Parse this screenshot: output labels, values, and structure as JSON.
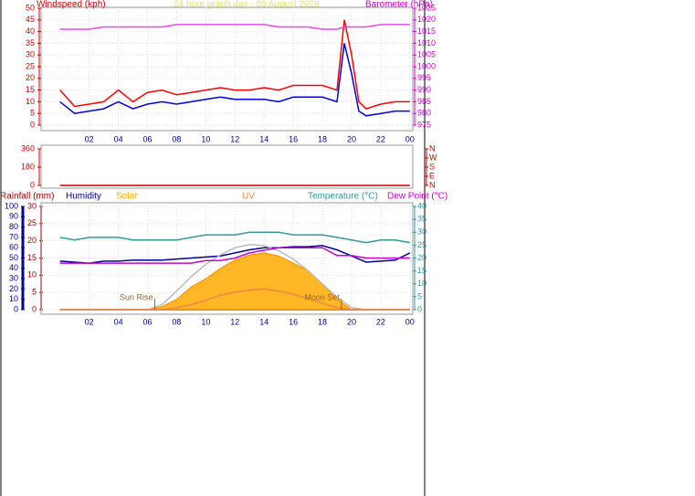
{
  "chart_data": [
    {
      "type": "line",
      "title": "24 hour graph day - 09 August 2026",
      "y_label": "Windspeed (kph)",
      "y2_label": "Barometer (hPa)",
      "axis_colors": {
        "y": "#cc0000",
        "y2": "#cc00cc"
      },
      "grid": true,
      "xlim": [
        -1.3,
        24.2
      ],
      "xticks": [
        {
          "value": 2,
          "label": "02"
        },
        {
          "value": 4,
          "label": "04"
        },
        {
          "value": 6,
          "label": "06"
        },
        {
          "value": 8,
          "label": "08"
        },
        10,
        12,
        14,
        16,
        18,
        20,
        22,
        {
          "value": 24,
          "label": "00"
        }
      ],
      "ylim": [
        0,
        50
      ],
      "yticks": [
        0,
        5,
        10,
        15,
        20,
        25,
        30,
        35,
        40,
        45,
        50
      ],
      "y2lim": [
        975,
        1025
      ],
      "y2ticks": [
        975,
        980,
        985,
        990,
        995,
        1000,
        1005,
        1010,
        1015,
        1020,
        1025
      ],
      "x": [
        0,
        1,
        2,
        3,
        4,
        5,
        6,
        7,
        8,
        9,
        10,
        11,
        12,
        13,
        14,
        15,
        16,
        17,
        18,
        19,
        19.5,
        20,
        20.5,
        21,
        22,
        23,
        24
      ],
      "series": [
        {
          "color": "#ff0000",
          "values": [
            15,
            8,
            9,
            10,
            15,
            10,
            14,
            15,
            13,
            14,
            15,
            16,
            15,
            15,
            16,
            15,
            17,
            17,
            17,
            15,
            45,
            30,
            10,
            7,
            9,
            10,
            10
          ]
        },
        {
          "color": "#0000dd",
          "values": [
            10,
            5,
            6,
            7,
            10,
            7,
            9,
            10,
            9,
            10,
            11,
            12,
            11,
            11,
            11,
            10,
            12,
            12,
            12,
            10,
            35,
            22,
            6,
            4,
            5,
            6,
            6
          ]
        },
        {
          "color": "#ee44ee",
          "axis": "y2",
          "values": [
            1016,
            1016,
            1016,
            1017,
            1017,
            1017,
            1017,
            1017,
            1018,
            1018,
            1018,
            1018,
            1018,
            1018,
            1018,
            1017,
            1017,
            1017,
            1016,
            1016,
            1017,
            1017,
            1017,
            1017,
            1018,
            1018,
            1018
          ]
        }
      ]
    },
    {
      "type": "line",
      "axis_colors": {
        "y": "#cc0000",
        "y2": "#cc0000"
      },
      "grid": false,
      "xlim": [
        -1.3,
        24.2
      ],
      "ylim": [
        0,
        360
      ],
      "yticks": [
        0,
        180,
        360
      ],
      "y2lim": [
        0,
        360
      ],
      "y2ticks": [
        {
          "value": 360,
          "label": "N"
        },
        {
          "value": 270,
          "label": "W"
        },
        {
          "value": 180,
          "label": "S"
        },
        {
          "value": 90,
          "label": "E"
        },
        {
          "value": 0,
          "label": "N"
        }
      ],
      "x": [
        0,
        24
      ],
      "series": [
        {
          "color": "#cc0000",
          "values": [
            0,
            0
          ]
        }
      ]
    },
    {
      "type": "line",
      "axis_colors": {
        "y": "#990000",
        "y2": "#339999",
        "y3": "#000099"
      },
      "grid": true,
      "xlim": [
        -1.3,
        24.2
      ],
      "xticks": [
        {
          "value": 2,
          "label": "02"
        },
        {
          "value": 4,
          "label": "04"
        },
        {
          "value": 6,
          "label": "06"
        },
        {
          "value": 8,
          "label": "08"
        },
        10,
        12,
        14,
        16,
        18,
        20,
        22,
        {
          "value": 24,
          "label": "00"
        }
      ],
      "ylim": [
        0,
        30
      ],
      "yticks": [
        0,
        5,
        10,
        15,
        20,
        25,
        30
      ],
      "y2lim": [
        0,
        40
      ],
      "y2ticks": [
        0,
        5,
        10,
        15,
        20,
        25,
        30,
        35,
        40
      ],
      "y3lim": [
        0,
        100
      ],
      "y3ticks": [
        0,
        10,
        20,
        30,
        40,
        50,
        60,
        70,
        80,
        90,
        100
      ],
      "x": [
        0,
        1,
        2,
        3,
        4,
        5,
        6,
        7,
        8,
        9,
        10,
        11,
        12,
        13,
        14,
        15,
        16,
        17,
        18,
        19,
        20,
        21,
        22,
        23,
        24
      ],
      "series": [
        {
          "name": "Rainfall (mm)",
          "color": "#990000",
          "values": [
            0,
            0,
            0,
            0,
            0,
            0,
            0,
            0,
            0,
            0,
            0,
            0,
            0,
            0,
            0,
            0,
            0,
            0,
            0,
            0,
            0,
            0,
            0,
            0,
            0
          ]
        },
        {
          "name": "Humidity",
          "color": "#000099",
          "axis": "y3",
          "values": [
            47,
            46,
            45,
            47,
            47,
            48,
            48,
            48,
            49,
            50,
            51,
            52,
            55,
            58,
            60,
            60,
            61,
            61,
            62,
            58,
            52,
            46,
            47,
            48,
            55
          ]
        },
        {
          "name": "Solar",
          "color": "#ffaa00",
          "axis": "y3",
          "kind": "area",
          "values": [
            0,
            0,
            0,
            0,
            0,
            0,
            0,
            3,
            10,
            22,
            30,
            40,
            48,
            53,
            55,
            52,
            45,
            38,
            25,
            10,
            0,
            0,
            0,
            0,
            0
          ]
        },
        {
          "color": "#bbbbbb",
          "axis": "y3",
          "values": [
            0,
            0,
            0,
            0,
            0,
            0,
            0,
            5,
            18,
            32,
            44,
            53,
            60,
            63,
            62,
            57,
            49,
            38,
            25,
            12,
            2,
            0,
            0,
            0,
            0
          ]
        },
        {
          "name": "UV",
          "color": "#ee8844",
          "axis": "y3",
          "values": [
            0,
            0,
            0,
            0,
            0,
            0,
            0,
            0,
            2,
            5,
            9,
            14,
            17,
            19,
            20,
            18,
            15,
            11,
            6,
            2,
            0,
            0,
            0,
            0,
            0
          ]
        },
        {
          "name": "Temperature (°C)",
          "color": "#339999",
          "axis": "y2",
          "values": [
            28,
            27,
            28,
            28,
            28,
            27,
            27,
            27,
            27,
            28,
            29,
            29,
            29,
            30,
            30,
            30,
            29,
            29,
            29,
            28,
            27,
            26,
            27,
            27,
            26
          ]
        },
        {
          "name": "Dew Point (°C)",
          "color": "#cc00cc",
          "axis": "y2",
          "values": [
            18,
            18,
            18,
            18,
            18,
            18,
            18,
            18,
            18,
            18,
            19,
            19,
            20,
            22,
            23,
            24,
            24,
            24,
            24,
            21,
            21,
            20,
            20,
            20,
            20
          ]
        }
      ],
      "annotations": [
        {
          "text": "Sun Rise",
          "x": 6.5
        },
        {
          "text": "Moon Set",
          "x": 19.3
        }
      ]
    }
  ]
}
